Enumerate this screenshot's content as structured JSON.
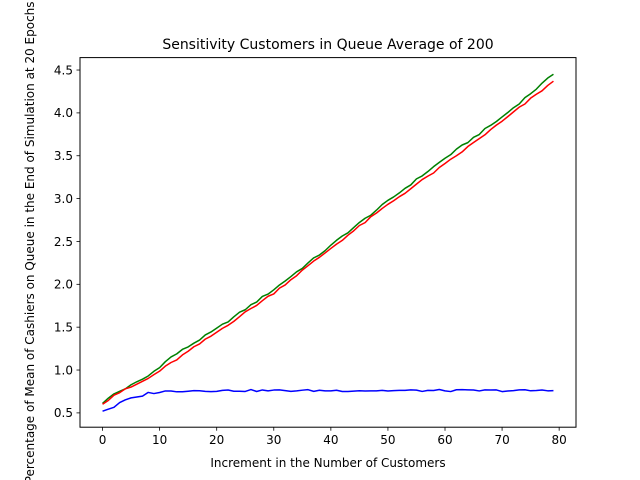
{
  "chart_data": {
    "type": "line",
    "title": "Sensitivity Customers in Queue Average of 200",
    "xlabel": "Increment in the Number of Customers",
    "ylabel": "Percentage of Mean of Cashiers on Queue in the End of Simulation at 20 Epochs",
    "xlim": [
      -3.95,
      82.95
    ],
    "ylim": [
      0.333,
      4.645
    ],
    "xticks": [
      0,
      10,
      20,
      30,
      40,
      50,
      60,
      70,
      80
    ],
    "xtick_labels": [
      "0",
      "10",
      "20",
      "30",
      "40",
      "50",
      "60",
      "70",
      "80"
    ],
    "yticks": [
      0.5,
      1.0,
      1.5,
      2.0,
      2.5,
      3.0,
      3.5,
      4.0,
      4.5
    ],
    "ytick_labels": [
      "0.5",
      "1.0",
      "1.5",
      "2.0",
      "2.5",
      "3.0",
      "3.5",
      "4.0",
      "4.5"
    ],
    "grid": false,
    "series": [
      {
        "color": "#008000",
        "x_start": 0,
        "x_end": 79,
        "y_knots": [
          [
            0,
            0.61
          ],
          [
            2,
            0.72
          ],
          [
            5,
            0.82
          ],
          [
            8,
            0.93
          ],
          [
            12,
            1.15
          ],
          [
            20,
            1.48
          ],
          [
            30,
            1.94
          ],
          [
            40,
            2.45
          ],
          [
            42,
            2.56
          ],
          [
            50,
            2.97
          ],
          [
            60,
            3.47
          ],
          [
            70,
            3.95
          ],
          [
            79,
            4.45
          ]
        ]
      },
      {
        "color": "#ff0000",
        "x_start": 0,
        "x_end": 79,
        "y_knots": [
          [
            0,
            0.6
          ],
          [
            2,
            0.71
          ],
          [
            5,
            0.8
          ],
          [
            8,
            0.9
          ],
          [
            12,
            1.08
          ],
          [
            20,
            1.44
          ],
          [
            30,
            1.9
          ],
          [
            40,
            2.42
          ],
          [
            50,
            2.93
          ],
          [
            60,
            3.4
          ],
          [
            70,
            3.9
          ],
          [
            79,
            4.37
          ]
        ]
      },
      {
        "color": "#0000ff",
        "x_start": 0,
        "x_end": 79,
        "y_knots": [
          [
            0,
            0.52
          ],
          [
            2,
            0.57
          ],
          [
            4,
            0.65
          ],
          [
            6,
            0.68
          ],
          [
            8,
            0.73
          ],
          [
            11,
            0.75
          ],
          [
            15,
            0.76
          ],
          [
            79,
            0.76
          ]
        ]
      }
    ]
  }
}
